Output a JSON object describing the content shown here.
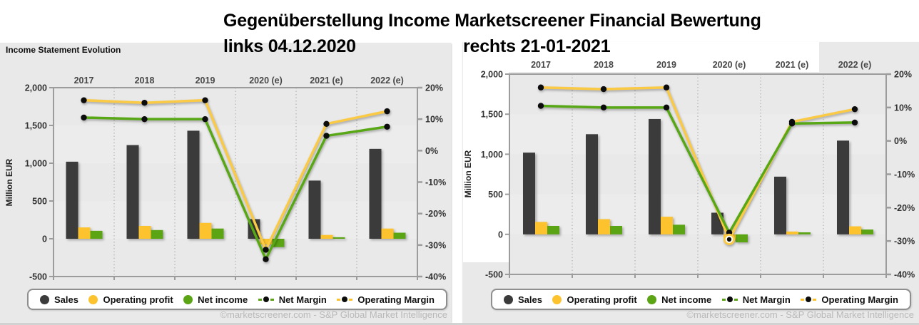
{
  "title": "Gegenüberstellung Income Marketscreener Financial Bewertung",
  "subtitle_left": "links 04.12.2020",
  "subtitle_right": "rechts 21-01-2021",
  "left_panel_header": "Income Statement Evolution",
  "footer": "©marketscreener.com - S&P Global Market Intelligence",
  "colors": {
    "sales": "#3b3b3b",
    "operating_profit": "#fcc32e",
    "net_income": "#5ba414",
    "marker": "#0c0c0c",
    "panel_bg": "#e9e9e9",
    "band_gray": "#ececec"
  },
  "legend": [
    {
      "label": "Sales",
      "type": "circle",
      "color": "#3b3b3b"
    },
    {
      "label": "Operating profit",
      "type": "circle",
      "color": "#fcc32e"
    },
    {
      "label": "Net income",
      "type": "circle",
      "color": "#5ba414"
    },
    {
      "label": "Net Margin",
      "type": "line-dot",
      "color": "#5ba414"
    },
    {
      "label": "Operating Margin",
      "type": "line-dot",
      "color": "#fcc32e"
    }
  ],
  "chart_data": [
    {
      "id": "left-04.12.2020",
      "type": "bar",
      "title": "Income Statement Evolution",
      "snapshot_date": "04.12.2020",
      "categories": [
        "2017",
        "2018",
        "2019",
        "2020 (e)",
        "2021 (e)",
        "2022 (e)"
      ],
      "bar_series": [
        {
          "name": "Sales",
          "color": "#3b3b3b",
          "values": [
            1020,
            1240,
            1430,
            260,
            770,
            1190
          ]
        },
        {
          "name": "Operating profit",
          "color": "#fcc32e",
          "values": [
            150,
            170,
            210,
            -75,
            50,
            135
          ]
        },
        {
          "name": "Net income",
          "color": "#5ba414",
          "values": [
            105,
            115,
            135,
            -110,
            20,
            80
          ]
        }
      ],
      "line_series": [
        {
          "name": "Operating Margin",
          "color": "#fbca45",
          "axis": "right",
          "unit": "%",
          "values": [
            16,
            15.2,
            16,
            -31.5,
            8.5,
            12.5
          ]
        },
        {
          "name": "Net Margin",
          "color": "#58a714",
          "axis": "right",
          "unit": "%",
          "values": [
            10.5,
            10,
            10,
            -34.5,
            4.7,
            7.6
          ]
        }
      ],
      "left_axis": {
        "label": "Million EUR",
        "min": -500,
        "max": 2000,
        "step": 500,
        "ticks": [
          "2,000",
          "1,500",
          "1,000",
          "500",
          "0",
          "-500"
        ]
      },
      "right_axis": {
        "min": -40,
        "max": 20,
        "step": 10,
        "ticks": [
          "20%",
          "10%",
          "0%",
          "-10%",
          "-20%",
          "-30%",
          "-40%"
        ]
      },
      "grid": "vertical-dotted",
      "legend_position": "bottom"
    },
    {
      "id": "right-21-01-2021",
      "type": "bar",
      "title": "Income Statement Evolution",
      "snapshot_date": "21-01-2021",
      "categories": [
        "2017",
        "2018",
        "2019",
        "2020 (e)",
        "2021 (e)",
        "2022 (e)"
      ],
      "bar_series": [
        {
          "name": "Sales",
          "color": "#3b3b3b",
          "values": [
            1020,
            1250,
            1440,
            270,
            720,
            1170
          ]
        },
        {
          "name": "Operating profit",
          "color": "#fcc32e",
          "values": [
            155,
            190,
            220,
            -70,
            35,
            100
          ]
        },
        {
          "name": "Net income",
          "color": "#5ba414",
          "values": [
            105,
            105,
            120,
            -100,
            25,
            60
          ]
        }
      ],
      "line_series": [
        {
          "name": "Operating Margin",
          "color": "#fbca45",
          "axis": "right",
          "unit": "%",
          "values": [
            16,
            15.5,
            16,
            -29.5,
            5.7,
            9.5
          ]
        },
        {
          "name": "Net Margin",
          "color": "#58a714",
          "axis": "right",
          "unit": "%",
          "values": [
            10.5,
            10,
            10,
            -27.5,
            5.2,
            5.5
          ]
        }
      ],
      "highlight": {
        "series_index": 0,
        "point_index": 3
      },
      "left_axis": {
        "label": "Million EUR",
        "min": -500,
        "max": 2000,
        "step": 500,
        "ticks": [
          "2,000",
          "1,500",
          "1,000",
          "500",
          "0",
          "-500"
        ]
      },
      "right_axis": {
        "min": -40,
        "max": 20,
        "step": 10,
        "ticks": [
          "20%",
          "10%",
          "0%",
          "-10%",
          "-20%",
          "-30%",
          "-40%"
        ]
      },
      "grid": "vertical-dotted",
      "legend_position": "bottom"
    }
  ]
}
